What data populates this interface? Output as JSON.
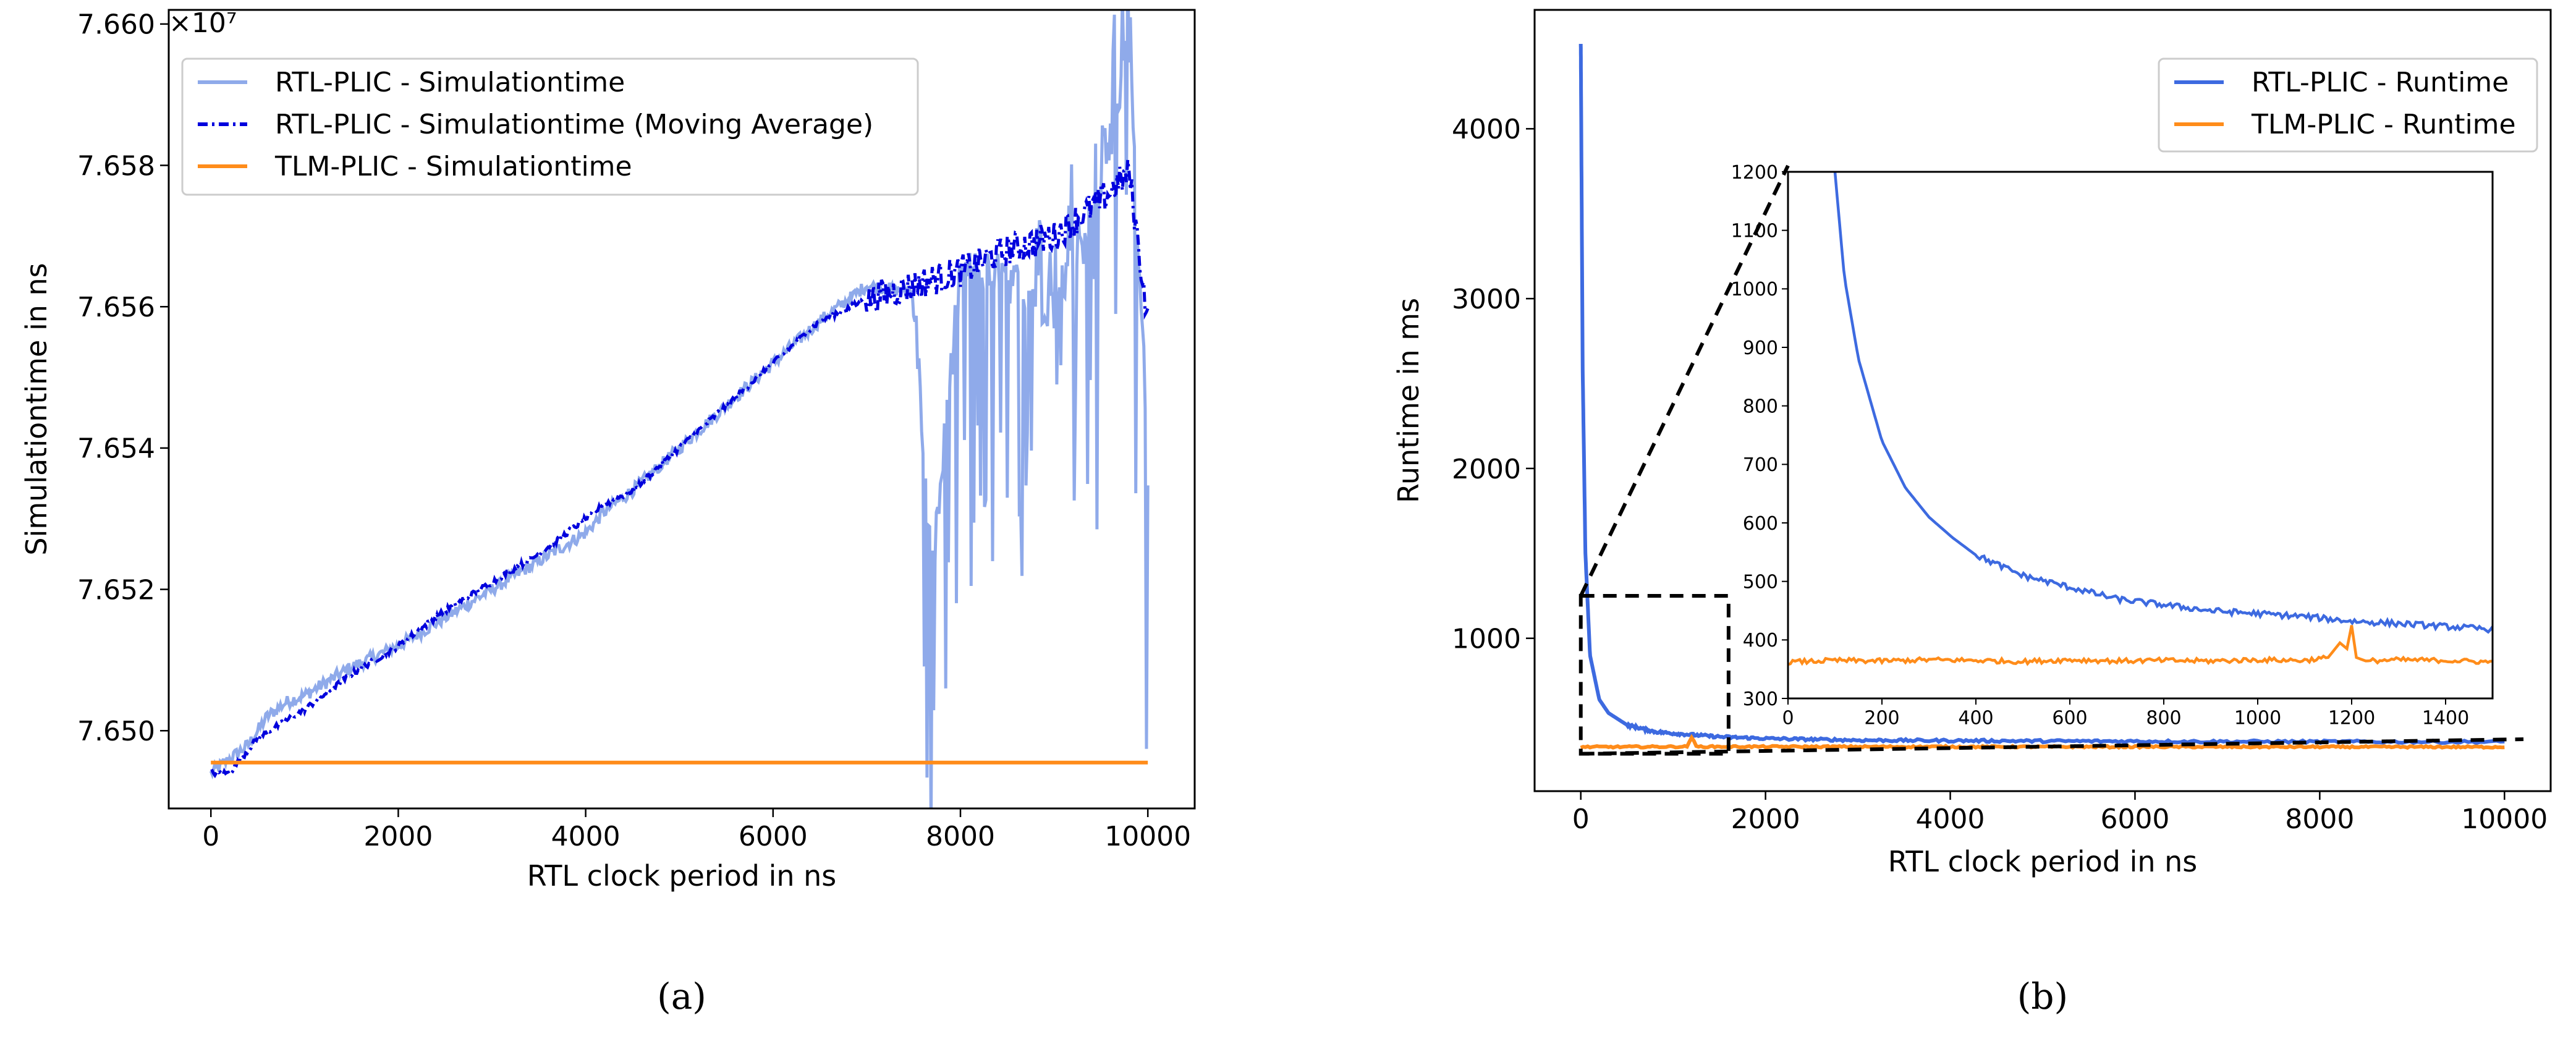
{
  "chart_data": [
    {
      "type": "line",
      "panel_caption": "(a)",
      "title": "",
      "xlabel": "RTL clock period in ns",
      "ylabel": "Simulationtime in ns",
      "y_offset_label": "×10⁷",
      "xlim": [
        -450,
        10500
      ],
      "ylim": [
        7.6489,
        7.6602
      ],
      "xticks": [
        0,
        2000,
        4000,
        6000,
        8000,
        10000
      ],
      "xtick_labels": [
        "0",
        "2000",
        "4000",
        "6000",
        "8000",
        "10000"
      ],
      "yticks": [
        7.65,
        7.652,
        7.654,
        7.656,
        7.658,
        7.66
      ],
      "ytick_labels": [
        "7.650",
        "7.652",
        "7.654",
        "7.656",
        "7.658",
        "7.660"
      ],
      "legend": "top-left",
      "grid": false,
      "series": [
        {
          "name": "RTL-PLIC - Simulationtime",
          "color": "#8FAAEA",
          "style": "solid",
          "x": [
            0,
            200,
            400,
            600,
            800,
            1000,
            1500,
            2000,
            2500,
            3000,
            3500,
            4000,
            4200,
            4500,
            5000,
            5500,
            6000,
            6500,
            7000,
            7500,
            7700,
            8000,
            8500,
            9000,
            9500,
            9800,
            10000
          ],
          "values": [
            7.6494,
            7.6496,
            7.6498,
            7.6502,
            7.6504,
            7.6505,
            7.6509,
            7.6512,
            7.6516,
            7.652,
            7.6524,
            7.6528,
            7.6531,
            7.6534,
            7.654,
            7.6546,
            7.6552,
            7.6558,
            7.6563,
            7.6562,
            7.6522,
            7.6565,
            7.6564,
            7.656,
            7.6575,
            7.6598,
            7.6538
          ]
        },
        {
          "name": "RTL-PLIC - Simulationtime (Moving Average)",
          "color": "#0000DD",
          "style": "dash-dot",
          "x": [
            0,
            200,
            500,
            1000,
            1500,
            2000,
            2500,
            3000,
            3500,
            4000,
            4200,
            4500,
            5000,
            5500,
            6000,
            6500,
            7000,
            7500,
            8000,
            8500,
            9000,
            9500,
            9800,
            10000
          ],
          "values": [
            7.6494,
            7.6494,
            7.6499,
            7.6503,
            7.6508,
            7.6512,
            7.6517,
            7.6521,
            7.6525,
            7.653,
            7.6532,
            7.6534,
            7.654,
            7.6546,
            7.6552,
            7.6558,
            7.6561,
            7.6563,
            7.6565,
            7.6568,
            7.657,
            7.6575,
            7.6579,
            7.6558
          ]
        },
        {
          "name": "TLM-PLIC - Simulationtime",
          "color": "#FF8C1A",
          "style": "solid",
          "x": [
            0,
            10000
          ],
          "values": [
            7.64955,
            7.64955
          ]
        }
      ]
    },
    {
      "type": "line",
      "panel_caption": "(b)",
      "title": "",
      "xlabel": "RTL clock period in ns",
      "ylabel": "Runtime in ms",
      "xlim": [
        -500,
        10500
      ],
      "ylim": [
        100,
        4700
      ],
      "xticks": [
        0,
        2000,
        4000,
        6000,
        8000,
        10000
      ],
      "xtick_labels": [
        "0",
        "2000",
        "4000",
        "6000",
        "8000",
        "10000"
      ],
      "yticks": [
        1000,
        2000,
        3000,
        4000
      ],
      "ytick_labels": [
        "1000",
        "2000",
        "3000",
        "4000"
      ],
      "legend": "top-right",
      "grid": false,
      "series": [
        {
          "name": "RTL-PLIC - Runtime",
          "color": "#3D6AE0",
          "style": "solid",
          "x": [
            0,
            20,
            50,
            100,
            200,
            300,
            500,
            800,
            1000,
            1500,
            2000,
            3000,
            5000,
            7000,
            10000
          ],
          "values": [
            4500,
            2600,
            1500,
            900,
            640,
            560,
            490,
            450,
            440,
            420,
            410,
            400,
            395,
            392,
            390
          ]
        },
        {
          "name": "TLM-PLIC - Runtime",
          "color": "#FF8C1A",
          "style": "solid",
          "x": [
            0,
            1150,
            1200,
            1250,
            10000
          ],
          "values": [
            360,
            362,
            420,
            362,
            360
          ]
        }
      ],
      "inset": {
        "xlim": [
          0,
          1500
        ],
        "ylim": [
          300,
          1200
        ],
        "xticks": [
          0,
          200,
          400,
          600,
          800,
          1000,
          1200,
          1400
        ],
        "xtick_labels": [
          "0",
          "200",
          "400",
          "600",
          "800",
          "1000",
          "1200",
          "1400"
        ],
        "yticks": [
          300,
          400,
          500,
          600,
          700,
          800,
          900,
          1000,
          1100,
          1200
        ],
        "ytick_labels": [
          "300",
          "400",
          "500",
          "600",
          "700",
          "800",
          "900",
          "1000",
          "1100",
          "1200"
        ],
        "zoom_box_x": [
          0,
          1600
        ],
        "zoom_box_y": [
          320,
          1250
        ],
        "series": [
          {
            "name": "RTL-PLIC - Runtime",
            "color": "#3D6AE0",
            "x": [
              100,
              120,
              150,
              200,
              250,
              300,
              350,
              400,
              500,
              600,
              700,
              800,
              900,
              1000,
              1100,
              1200,
              1300,
              1400,
              1500
            ],
            "values": [
              1200,
              1020,
              880,
              740,
              660,
              610,
              575,
              545,
              510,
              490,
              470,
              460,
              450,
              445,
              440,
              432,
              428,
              423,
              418
            ]
          },
          {
            "name": "TLM-PLIC - Runtime",
            "color": "#FF8C1A",
            "x": [
              0,
              100,
              200,
              300,
              400,
              500,
              600,
              700,
              800,
              900,
              1000,
              1100,
              1150,
              1175,
              1190,
              1200,
              1210,
              1230,
              1300,
              1400,
              1500
            ],
            "values": [
              362,
              365,
              364,
              366,
              365,
              363,
              366,
              364,
              365,
              364,
              366,
              365,
              370,
              395,
              385,
              425,
              370,
              364,
              366,
              365,
              362
            ]
          }
        ]
      }
    }
  ]
}
